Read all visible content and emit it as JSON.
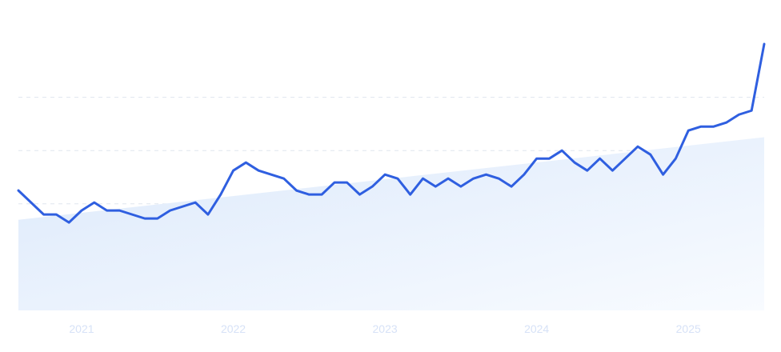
{
  "chart_data": {
    "type": "line",
    "title": "",
    "xlabel": "",
    "ylabel": "",
    "x_tick_labels": [
      "2021",
      "2022",
      "2023",
      "2024",
      "2025"
    ],
    "grid": true,
    "legend": "none",
    "colors": {
      "line": "#2f5fe0",
      "grid": "#dfe5ef",
      "trend_fill_start": "#dce9fb",
      "trend_fill_end": "#f8fbff",
      "tick_label": "#d7e2f7"
    },
    "series": [
      {
        "x": [
          "2020-08",
          "2020-09",
          "2020-10",
          "2020-11",
          "2020-12",
          "2021-01",
          "2021-02",
          "2021-03",
          "2021-04",
          "2021-05",
          "2021-06",
          "2021-07",
          "2021-08",
          "2021-09",
          "2021-10",
          "2021-11",
          "2021-12",
          "2022-01",
          "2022-02",
          "2022-03",
          "2022-04",
          "2022-05",
          "2022-06",
          "2022-07",
          "2022-08",
          "2022-09",
          "2022-10",
          "2022-11",
          "2022-12",
          "2023-01",
          "2023-02",
          "2023-03",
          "2023-04",
          "2023-05",
          "2023-06",
          "2023-07",
          "2023-08",
          "2023-09",
          "2023-10",
          "2023-11",
          "2023-12",
          "2024-01",
          "2024-02",
          "2024-03",
          "2024-04",
          "2024-05",
          "2024-06",
          "2024-07",
          "2024-08",
          "2024-09",
          "2024-10",
          "2024-11",
          "2024-12",
          "2025-01",
          "2025-02",
          "2025-03",
          "2025-04",
          "2025-05",
          "2025-06",
          "2025-07"
        ],
        "values": [
          45,
          40.5,
          36,
          36,
          33,
          37.5,
          40.5,
          37.5,
          37.5,
          36,
          34.5,
          34.5,
          37.5,
          39,
          40.5,
          36,
          43.5,
          52.5,
          55.5,
          52.5,
          51,
          49.5,
          45,
          43.5,
          43.5,
          48,
          48,
          43.5,
          46.5,
          51,
          49.5,
          43.5,
          49.5,
          46.5,
          49.5,
          46.5,
          49.5,
          51,
          49.5,
          46.5,
          51,
          57,
          57,
          60,
          55.5,
          52.5,
          57,
          52.5,
          57,
          61.5,
          58.5,
          51,
          57,
          67.5,
          69,
          69,
          70.5,
          73.5,
          75,
          100
        ]
      }
    ],
    "trend": {
      "start": 34,
      "end": 65
    },
    "ylim": [
      0,
      100
    ]
  }
}
